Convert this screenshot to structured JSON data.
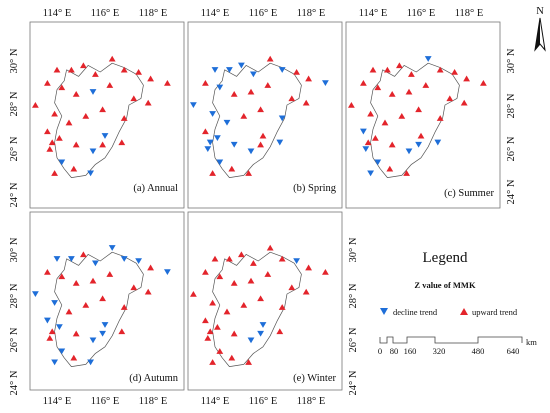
{
  "colors": {
    "upward": "#e3242b",
    "decline": "#1e6ed8",
    "boundary": "#555555",
    "frame": "#777777"
  },
  "axes": {
    "top_lon_labels": [
      "114° E",
      "116° E",
      "118° E"
    ],
    "bottom_lon_labels": [
      "114° E",
      "116° E",
      "118° E"
    ],
    "left_lat_labels": [
      "30° N",
      "28° N",
      "26° N",
      "24° N"
    ],
    "right_lat_labels": [
      "30° N",
      "28° N",
      "26° N",
      "24° N"
    ]
  },
  "panels": [
    {
      "title": "(a) Annual",
      "stations": [
        {
          "lon": 113.1,
          "lat": 28.0,
          "trend": "up"
        },
        {
          "lon": 113.6,
          "lat": 29.0,
          "trend": "up"
        },
        {
          "lon": 114.0,
          "lat": 29.6,
          "trend": "up"
        },
        {
          "lon": 114.6,
          "lat": 29.6,
          "trend": "up"
        },
        {
          "lon": 115.1,
          "lat": 29.8,
          "trend": "up"
        },
        {
          "lon": 115.6,
          "lat": 29.4,
          "trend": "up"
        },
        {
          "lon": 116.3,
          "lat": 30.1,
          "trend": "up"
        },
        {
          "lon": 116.8,
          "lat": 29.6,
          "trend": "up"
        },
        {
          "lon": 117.4,
          "lat": 29.5,
          "trend": "up"
        },
        {
          "lon": 117.9,
          "lat": 29.2,
          "trend": "up"
        },
        {
          "lon": 118.6,
          "lat": 29.0,
          "trend": "up"
        },
        {
          "lon": 114.2,
          "lat": 28.8,
          "trend": "up"
        },
        {
          "lon": 114.8,
          "lat": 28.5,
          "trend": "up"
        },
        {
          "lon": 115.5,
          "lat": 28.6,
          "trend": "down"
        },
        {
          "lon": 116.2,
          "lat": 28.9,
          "trend": "up"
        },
        {
          "lon": 117.2,
          "lat": 28.3,
          "trend": "up"
        },
        {
          "lon": 117.8,
          "lat": 28.1,
          "trend": "up"
        },
        {
          "lon": 113.9,
          "lat": 27.6,
          "trend": "up"
        },
        {
          "lon": 114.5,
          "lat": 27.2,
          "trend": "up"
        },
        {
          "lon": 115.2,
          "lat": 27.5,
          "trend": "up"
        },
        {
          "lon": 115.9,
          "lat": 27.8,
          "trend": "up"
        },
        {
          "lon": 116.8,
          "lat": 27.4,
          "trend": "up"
        },
        {
          "lon": 113.6,
          "lat": 26.8,
          "trend": "up"
        },
        {
          "lon": 114.1,
          "lat": 26.5,
          "trend": "up"
        },
        {
          "lon": 114.8,
          "lat": 26.2,
          "trend": "up"
        },
        {
          "lon": 116.0,
          "lat": 26.6,
          "trend": "down"
        },
        {
          "lon": 116.7,
          "lat": 26.3,
          "trend": "up"
        },
        {
          "lon": 113.7,
          "lat": 26.0,
          "trend": "up"
        },
        {
          "lon": 115.5,
          "lat": 25.9,
          "trend": "down"
        },
        {
          "lon": 114.2,
          "lat": 25.4,
          "trend": "down"
        },
        {
          "lon": 113.9,
          "lat": 24.9,
          "trend": "up"
        },
        {
          "lon": 114.7,
          "lat": 25.1,
          "trend": "up"
        },
        {
          "lon": 115.4,
          "lat": 24.9,
          "trend": "down"
        },
        {
          "lon": 113.8,
          "lat": 26.3,
          "trend": "up"
        },
        {
          "lon": 115.9,
          "lat": 26.2,
          "trend": "up"
        }
      ]
    },
    {
      "title": "(b) Spring",
      "stations": [
        {
          "lon": 113.1,
          "lat": 28.0,
          "trend": "down"
        },
        {
          "lon": 113.6,
          "lat": 29.0,
          "trend": "up"
        },
        {
          "lon": 114.0,
          "lat": 29.6,
          "trend": "down"
        },
        {
          "lon": 114.6,
          "lat": 29.6,
          "trend": "down"
        },
        {
          "lon": 115.1,
          "lat": 29.8,
          "trend": "down"
        },
        {
          "lon": 115.6,
          "lat": 29.4,
          "trend": "down"
        },
        {
          "lon": 116.3,
          "lat": 30.1,
          "trend": "up"
        },
        {
          "lon": 116.8,
          "lat": 29.6,
          "trend": "down"
        },
        {
          "lon": 117.4,
          "lat": 29.5,
          "trend": "up"
        },
        {
          "lon": 117.9,
          "lat": 29.2,
          "trend": "up"
        },
        {
          "lon": 118.6,
          "lat": 29.0,
          "trend": "down"
        },
        {
          "lon": 114.2,
          "lat": 28.8,
          "trend": "down"
        },
        {
          "lon": 114.8,
          "lat": 28.5,
          "trend": "up"
        },
        {
          "lon": 115.5,
          "lat": 28.6,
          "trend": "up"
        },
        {
          "lon": 116.2,
          "lat": 28.9,
          "trend": "up"
        },
        {
          "lon": 117.2,
          "lat": 28.3,
          "trend": "up"
        },
        {
          "lon": 117.8,
          "lat": 28.1,
          "trend": "up"
        },
        {
          "lon": 113.9,
          "lat": 27.6,
          "trend": "down"
        },
        {
          "lon": 114.5,
          "lat": 27.2,
          "trend": "down"
        },
        {
          "lon": 115.2,
          "lat": 27.5,
          "trend": "up"
        },
        {
          "lon": 115.9,
          "lat": 27.8,
          "trend": "up"
        },
        {
          "lon": 116.8,
          "lat": 27.4,
          "trend": "down"
        },
        {
          "lon": 113.6,
          "lat": 26.8,
          "trend": "up"
        },
        {
          "lon": 114.1,
          "lat": 26.5,
          "trend": "down"
        },
        {
          "lon": 114.8,
          "lat": 26.2,
          "trend": "down"
        },
        {
          "lon": 116.0,
          "lat": 26.6,
          "trend": "up"
        },
        {
          "lon": 116.7,
          "lat": 26.3,
          "trend": "down"
        },
        {
          "lon": 113.7,
          "lat": 26.0,
          "trend": "down"
        },
        {
          "lon": 115.5,
          "lat": 25.9,
          "trend": "down"
        },
        {
          "lon": 114.2,
          "lat": 25.4,
          "trend": "down"
        },
        {
          "lon": 113.9,
          "lat": 24.9,
          "trend": "up"
        },
        {
          "lon": 114.7,
          "lat": 25.1,
          "trend": "up"
        },
        {
          "lon": 115.4,
          "lat": 24.9,
          "trend": "up"
        },
        {
          "lon": 113.8,
          "lat": 26.3,
          "trend": "down"
        },
        {
          "lon": 115.9,
          "lat": 26.2,
          "trend": "up"
        }
      ]
    },
    {
      "title": "(c) Summer",
      "stations": [
        {
          "lon": 113.1,
          "lat": 28.0,
          "trend": "up"
        },
        {
          "lon": 113.6,
          "lat": 29.0,
          "trend": "up"
        },
        {
          "lon": 114.0,
          "lat": 29.6,
          "trend": "up"
        },
        {
          "lon": 114.6,
          "lat": 29.6,
          "trend": "up"
        },
        {
          "lon": 115.1,
          "lat": 29.8,
          "trend": "up"
        },
        {
          "lon": 115.6,
          "lat": 29.4,
          "trend": "up"
        },
        {
          "lon": 116.3,
          "lat": 30.1,
          "trend": "down"
        },
        {
          "lon": 116.8,
          "lat": 29.6,
          "trend": "up"
        },
        {
          "lon": 117.4,
          "lat": 29.5,
          "trend": "up"
        },
        {
          "lon": 117.9,
          "lat": 29.2,
          "trend": "up"
        },
        {
          "lon": 118.6,
          "lat": 29.0,
          "trend": "up"
        },
        {
          "lon": 114.2,
          "lat": 28.8,
          "trend": "up"
        },
        {
          "lon": 114.8,
          "lat": 28.5,
          "trend": "up"
        },
        {
          "lon": 115.5,
          "lat": 28.6,
          "trend": "up"
        },
        {
          "lon": 116.2,
          "lat": 28.9,
          "trend": "up"
        },
        {
          "lon": 117.2,
          "lat": 28.3,
          "trend": "up"
        },
        {
          "lon": 117.8,
          "lat": 28.1,
          "trend": "up"
        },
        {
          "lon": 113.9,
          "lat": 27.6,
          "trend": "up"
        },
        {
          "lon": 114.5,
          "lat": 27.2,
          "trend": "up"
        },
        {
          "lon": 115.2,
          "lat": 27.5,
          "trend": "up"
        },
        {
          "lon": 115.9,
          "lat": 27.8,
          "trend": "up"
        },
        {
          "lon": 116.8,
          "lat": 27.4,
          "trend": "up"
        },
        {
          "lon": 113.6,
          "lat": 26.8,
          "trend": "down"
        },
        {
          "lon": 114.1,
          "lat": 26.5,
          "trend": "up"
        },
        {
          "lon": 114.8,
          "lat": 26.2,
          "trend": "up"
        },
        {
          "lon": 116.0,
          "lat": 26.6,
          "trend": "up"
        },
        {
          "lon": 116.7,
          "lat": 26.3,
          "trend": "down"
        },
        {
          "lon": 113.7,
          "lat": 26.0,
          "trend": "down"
        },
        {
          "lon": 115.5,
          "lat": 25.9,
          "trend": "down"
        },
        {
          "lon": 114.2,
          "lat": 25.4,
          "trend": "down"
        },
        {
          "lon": 113.9,
          "lat": 24.9,
          "trend": "down"
        },
        {
          "lon": 114.7,
          "lat": 25.1,
          "trend": "up"
        },
        {
          "lon": 115.4,
          "lat": 24.9,
          "trend": "up"
        },
        {
          "lon": 113.8,
          "lat": 26.3,
          "trend": "up"
        },
        {
          "lon": 115.9,
          "lat": 26.2,
          "trend": "down"
        }
      ]
    },
    {
      "title": "(d) Autumn",
      "stations": [
        {
          "lon": 113.1,
          "lat": 28.0,
          "trend": "down"
        },
        {
          "lon": 113.6,
          "lat": 29.0,
          "trend": "up"
        },
        {
          "lon": 114.0,
          "lat": 29.6,
          "trend": "down"
        },
        {
          "lon": 114.6,
          "lat": 29.6,
          "trend": "down"
        },
        {
          "lon": 115.1,
          "lat": 29.8,
          "trend": "up"
        },
        {
          "lon": 115.6,
          "lat": 29.4,
          "trend": "down"
        },
        {
          "lon": 116.3,
          "lat": 30.1,
          "trend": "down"
        },
        {
          "lon": 116.8,
          "lat": 29.6,
          "trend": "down"
        },
        {
          "lon": 117.4,
          "lat": 29.5,
          "trend": "down"
        },
        {
          "lon": 117.9,
          "lat": 29.2,
          "trend": "up"
        },
        {
          "lon": 118.6,
          "lat": 29.0,
          "trend": "down"
        },
        {
          "lon": 114.2,
          "lat": 28.8,
          "trend": "up"
        },
        {
          "lon": 114.8,
          "lat": 28.5,
          "trend": "up"
        },
        {
          "lon": 115.5,
          "lat": 28.6,
          "trend": "up"
        },
        {
          "lon": 116.2,
          "lat": 28.9,
          "trend": "up"
        },
        {
          "lon": 117.2,
          "lat": 28.3,
          "trend": "up"
        },
        {
          "lon": 117.8,
          "lat": 28.1,
          "trend": "up"
        },
        {
          "lon": 113.9,
          "lat": 27.6,
          "trend": "down"
        },
        {
          "lon": 114.5,
          "lat": 27.2,
          "trend": "up"
        },
        {
          "lon": 115.2,
          "lat": 27.5,
          "trend": "up"
        },
        {
          "lon": 115.9,
          "lat": 27.8,
          "trend": "up"
        },
        {
          "lon": 116.8,
          "lat": 27.4,
          "trend": "up"
        },
        {
          "lon": 113.6,
          "lat": 26.8,
          "trend": "down"
        },
        {
          "lon": 114.1,
          "lat": 26.5,
          "trend": "down"
        },
        {
          "lon": 114.8,
          "lat": 26.2,
          "trend": "up"
        },
        {
          "lon": 116.0,
          "lat": 26.6,
          "trend": "down"
        },
        {
          "lon": 116.7,
          "lat": 26.3,
          "trend": "up"
        },
        {
          "lon": 113.7,
          "lat": 26.0,
          "trend": "up"
        },
        {
          "lon": 115.5,
          "lat": 25.9,
          "trend": "down"
        },
        {
          "lon": 114.2,
          "lat": 25.4,
          "trend": "down"
        },
        {
          "lon": 113.9,
          "lat": 24.9,
          "trend": "down"
        },
        {
          "lon": 114.7,
          "lat": 25.1,
          "trend": "up"
        },
        {
          "lon": 115.4,
          "lat": 24.9,
          "trend": "down"
        },
        {
          "lon": 113.8,
          "lat": 26.3,
          "trend": "up"
        },
        {
          "lon": 115.9,
          "lat": 26.2,
          "trend": "down"
        }
      ]
    },
    {
      "title": "(e) Winter",
      "stations": [
        {
          "lon": 113.1,
          "lat": 28.0,
          "trend": "up"
        },
        {
          "lon": 113.6,
          "lat": 29.0,
          "trend": "up"
        },
        {
          "lon": 114.0,
          "lat": 29.6,
          "trend": "up"
        },
        {
          "lon": 114.6,
          "lat": 29.6,
          "trend": "up"
        },
        {
          "lon": 115.1,
          "lat": 29.8,
          "trend": "up"
        },
        {
          "lon": 115.6,
          "lat": 29.4,
          "trend": "up"
        },
        {
          "lon": 116.3,
          "lat": 30.1,
          "trend": "up"
        },
        {
          "lon": 116.8,
          "lat": 29.6,
          "trend": "up"
        },
        {
          "lon": 117.4,
          "lat": 29.5,
          "trend": "down"
        },
        {
          "lon": 117.9,
          "lat": 29.2,
          "trend": "up"
        },
        {
          "lon": 118.6,
          "lat": 29.0,
          "trend": "up"
        },
        {
          "lon": 114.2,
          "lat": 28.8,
          "trend": "up"
        },
        {
          "lon": 114.8,
          "lat": 28.5,
          "trend": "up"
        },
        {
          "lon": 115.5,
          "lat": 28.6,
          "trend": "up"
        },
        {
          "lon": 116.2,
          "lat": 28.9,
          "trend": "up"
        },
        {
          "lon": 117.2,
          "lat": 28.3,
          "trend": "up"
        },
        {
          "lon": 117.8,
          "lat": 28.1,
          "trend": "up"
        },
        {
          "lon": 113.9,
          "lat": 27.6,
          "trend": "up"
        },
        {
          "lon": 114.5,
          "lat": 27.2,
          "trend": "up"
        },
        {
          "lon": 115.2,
          "lat": 27.5,
          "trend": "up"
        },
        {
          "lon": 115.9,
          "lat": 27.8,
          "trend": "up"
        },
        {
          "lon": 116.8,
          "lat": 27.4,
          "trend": "up"
        },
        {
          "lon": 113.6,
          "lat": 26.8,
          "trend": "up"
        },
        {
          "lon": 114.1,
          "lat": 26.5,
          "trend": "up"
        },
        {
          "lon": 114.8,
          "lat": 26.2,
          "trend": "up"
        },
        {
          "lon": 116.0,
          "lat": 26.6,
          "trend": "down"
        },
        {
          "lon": 116.7,
          "lat": 26.3,
          "trend": "up"
        },
        {
          "lon": 113.7,
          "lat": 26.0,
          "trend": "up"
        },
        {
          "lon": 115.5,
          "lat": 25.9,
          "trend": "down"
        },
        {
          "lon": 114.2,
          "lat": 25.4,
          "trend": "up"
        },
        {
          "lon": 113.9,
          "lat": 24.9,
          "trend": "up"
        },
        {
          "lon": 114.7,
          "lat": 25.1,
          "trend": "up"
        },
        {
          "lon": 115.4,
          "lat": 24.9,
          "trend": "up"
        },
        {
          "lon": 113.8,
          "lat": 26.3,
          "trend": "up"
        },
        {
          "lon": 115.9,
          "lat": 26.2,
          "trend": "down"
        }
      ]
    }
  ],
  "legend": {
    "title": "Legend",
    "subtitle": "Z value of MMK",
    "decline_label": "decline trend",
    "upward_label": "upward trend"
  },
  "scale_bar": {
    "labels": [
      "0",
      "80",
      "160",
      "320",
      "480",
      "640"
    ],
    "unit": "km"
  },
  "north_arrow": {
    "label": "N"
  }
}
